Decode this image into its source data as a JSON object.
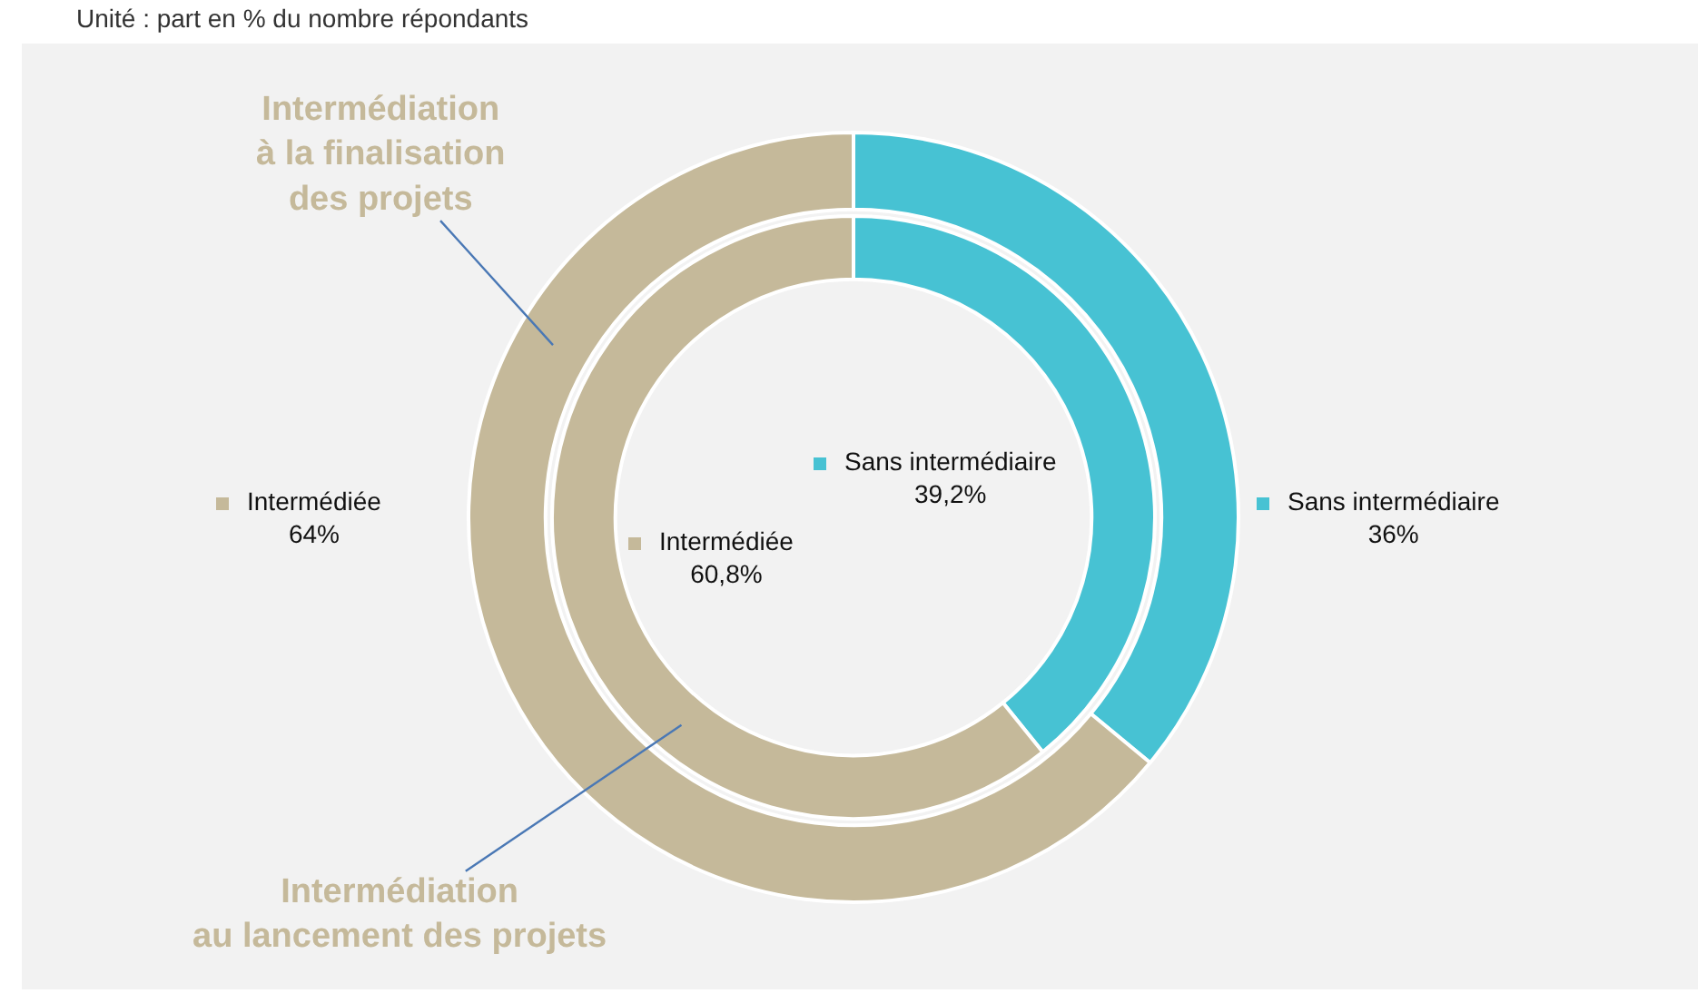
{
  "chart_data": {
    "type": "donut",
    "subtitle": "Unité : part en % du nombre répondants",
    "categories": [
      "Sans intermédiaire",
      "Intermédiée"
    ],
    "colors": [
      "#47c2d3",
      "#c5b99a"
    ],
    "legend": "center",
    "series": [
      {
        "name": "Intermédiation à la finalisation des projets",
        "values": [
          36,
          64
        ],
        "value_labels": [
          "36%",
          "64%"
        ]
      },
      {
        "name": "Intermédiation au lancement des projets",
        "values": [
          39.2,
          60.8
        ],
        "value_labels": [
          "39,2%",
          "60,8%"
        ]
      }
    ]
  }
}
